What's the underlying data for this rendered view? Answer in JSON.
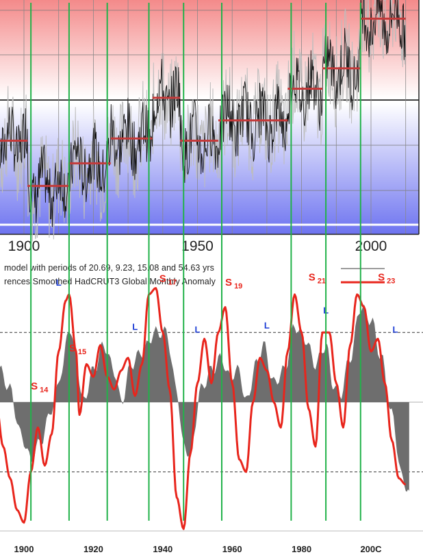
{
  "chart_data": [
    {
      "type": "line",
      "x_ticks": [
        "1900",
        "1950",
        "2000"
      ],
      "xlim": [
        1890,
        2012
      ],
      "series": [
        {
          "description": "monthly temperature anomaly (black noisy line) with step means (red segments)",
          "steps": [
            {
              "x0": 1890,
              "x1": 1901,
              "y": -0.18
            },
            {
              "x0": 1901,
              "x1": 1913,
              "y": -0.38
            },
            {
              "x0": 1913,
              "x1": 1925,
              "y": -0.28
            },
            {
              "x0": 1925,
              "x1": 1937,
              "y": -0.17
            },
            {
              "x0": 1937,
              "x1": 1945,
              "y": 0.01
            },
            {
              "x0": 1945,
              "x1": 1956,
              "y": -0.18
            },
            {
              "x0": 1956,
              "x1": 1976,
              "y": -0.09
            },
            {
              "x0": 1976,
              "x1": 1986,
              "y": 0.05
            },
            {
              "x0": 1986,
              "x1": 1997,
              "y": 0.14
            },
            {
              "x0": 1997,
              "x1": 2010,
              "y": 0.36
            }
          ]
        }
      ]
    },
    {
      "type": "area",
      "legend": [
        {
          "text": "model with periods of 20.69, 9.23, 15.08 and 54.63 yrs",
          "color": "#7a7a7a"
        },
        {
          "text": "rences Smoothed HadCRUT3 Global Monthly Anomaly",
          "color": "#e8251c"
        }
      ],
      "x_ticks": [
        "1900",
        "1920",
        "1940",
        "1960",
        "1980",
        "200C"
      ],
      "xlim": [
        1890,
        2012
      ],
      "ylim": [
        -1,
        1
      ],
      "reference_lines": [
        0.55,
        -0.55
      ],
      "series": [
        {
          "color": "#6e6e6e",
          "points": [
            [
              1890,
              0.15
            ],
            [
              1893,
              0.25
            ],
            [
              1896,
              0.1
            ],
            [
              1899,
              -0.25
            ],
            [
              1902,
              -0.45
            ],
            [
              1905,
              -0.3
            ],
            [
              1908,
              -0.05
            ],
            [
              1911,
              0.25
            ],
            [
              1913,
              0.6
            ],
            [
              1915,
              0.35
            ],
            [
              1917,
              0.0
            ],
            [
              1920,
              0.25
            ],
            [
              1923,
              0.45
            ],
            [
              1926,
              0.25
            ],
            [
              1928,
              0.0
            ],
            [
              1931,
              0.3
            ],
            [
              1934,
              0.4
            ],
            [
              1938,
              0.55
            ],
            [
              1941,
              0.55
            ],
            [
              1944,
              0.1
            ],
            [
              1946,
              -0.35
            ],
            [
              1948,
              -0.4
            ],
            [
              1951,
              0.1
            ],
            [
              1954,
              0.25
            ],
            [
              1957,
              0.35
            ],
            [
              1959,
              0.2
            ],
            [
              1962,
              0.25
            ],
            [
              1964,
              0.0
            ],
            [
              1967,
              0.3
            ],
            [
              1969,
              0.45
            ],
            [
              1972,
              0.15
            ],
            [
              1975,
              0.25
            ],
            [
              1978,
              0.6
            ],
            [
              1981,
              0.5
            ],
            [
              1984,
              0.3
            ],
            [
              1987,
              0.45
            ],
            [
              1989,
              0.15
            ],
            [
              1991,
              0.05
            ],
            [
              1994,
              0.35
            ],
            [
              1997,
              0.75
            ],
            [
              2000,
              0.65
            ],
            [
              2003,
              0.35
            ],
            [
              2006,
              -0.1
            ],
            [
              2009,
              -0.6
            ],
            [
              2011,
              -0.7
            ]
          ]
        },
        {
          "color": "#e8251c",
          "points": [
            [
              1890,
              0.45
            ],
            [
              1892,
              0.0
            ],
            [
              1894,
              -0.35
            ],
            [
              1896,
              -0.6
            ],
            [
              1898,
              -0.85
            ],
            [
              1900,
              -0.95
            ],
            [
              1902,
              -0.55
            ],
            [
              1904,
              -0.2
            ],
            [
              1906,
              -0.5
            ],
            [
              1908,
              -0.25
            ],
            [
              1910,
              0.4
            ],
            [
              1912,
              0.8
            ],
            [
              1913,
              0.85
            ],
            [
              1915,
              0.4
            ],
            [
              1916,
              -0.1
            ],
            [
              1918,
              0.3
            ],
            [
              1920,
              0.2
            ],
            [
              1922,
              0.45
            ],
            [
              1924,
              0.2
            ],
            [
              1926,
              0.1
            ],
            [
              1928,
              0.25
            ],
            [
              1930,
              0.35
            ],
            [
              1932,
              0.05
            ],
            [
              1934,
              0.3
            ],
            [
              1936,
              0.85
            ],
            [
              1938,
              0.9
            ],
            [
              1940,
              0.55
            ],
            [
              1942,
              0.1
            ],
            [
              1944,
              -0.75
            ],
            [
              1946,
              -1.0
            ],
            [
              1948,
              -0.4
            ],
            [
              1950,
              0.15
            ],
            [
              1952,
              0.5
            ],
            [
              1954,
              0.15
            ],
            [
              1956,
              0.55
            ],
            [
              1958,
              0.75
            ],
            [
              1960,
              0.15
            ],
            [
              1962,
              -0.45
            ],
            [
              1964,
              -0.55
            ],
            [
              1966,
              0.0
            ],
            [
              1968,
              0.35
            ],
            [
              1970,
              0.25
            ],
            [
              1972,
              0.0
            ],
            [
              1974,
              -0.2
            ],
            [
              1976,
              0.4
            ],
            [
              1978,
              0.85
            ],
            [
              1980,
              0.55
            ],
            [
              1982,
              -0.05
            ],
            [
              1984,
              -0.35
            ],
            [
              1986,
              0.55
            ],
            [
              1988,
              0.55
            ],
            [
              1990,
              0.15
            ],
            [
              1992,
              -0.2
            ],
            [
              1994,
              0.45
            ],
            [
              1996,
              0.85
            ],
            [
              1998,
              0.75
            ],
            [
              2000,
              0.4
            ],
            [
              2002,
              0.5
            ],
            [
              2004,
              0.15
            ],
            [
              2006,
              -0.3
            ],
            [
              2008,
              -0.6
            ],
            [
              2010,
              -0.65
            ]
          ]
        }
      ],
      "annotations": [
        {
          "text": "S",
          "sub": "14",
          "x": 1902,
          "y": 0.1,
          "color": "#e8251c"
        },
        {
          "text": "S",
          "sub": "15",
          "x": 1913,
          "y": 0.4,
          "color": "#e8251c"
        },
        {
          "text": "S",
          "sub": "17",
          "x": 1939,
          "y": 0.95,
          "color": "#e8251c"
        },
        {
          "text": "S",
          "sub": "19",
          "x": 1958,
          "y": 0.92,
          "color": "#e8251c"
        },
        {
          "text": "S",
          "sub": "21",
          "x": 1982,
          "y": 0.96,
          "color": "#e8251c"
        },
        {
          "text": "S",
          "sub": "23",
          "x": 2002,
          "y": 0.96,
          "color": "#e8251c"
        },
        {
          "text": "L",
          "x": 1910,
          "y": 0.92,
          "color": "#1f3fd6"
        },
        {
          "text": "L",
          "x": 1932,
          "y": 0.57,
          "color": "#1f3fd6"
        },
        {
          "text": "L",
          "x": 1950,
          "y": 0.55,
          "color": "#1f3fd6"
        },
        {
          "text": "L",
          "x": 1970,
          "y": 0.58,
          "color": "#1f3fd6"
        },
        {
          "text": "L",
          "x": 1987,
          "y": 0.7,
          "color": "#1f3fd6"
        },
        {
          "text": "L",
          "x": 2007,
          "y": 0.55,
          "color": "#1f3fd6"
        }
      ]
    }
  ],
  "vertical_markers": {
    "color": "#22b24a",
    "x": [
      1902,
      1913,
      1924,
      1936,
      1946,
      1957,
      1977,
      1987,
      1997
    ]
  },
  "colors": {
    "step_mean": "#c43a3a",
    "noisy_trace": "#111111",
    "noisy_spread": "#bdbdbd"
  }
}
